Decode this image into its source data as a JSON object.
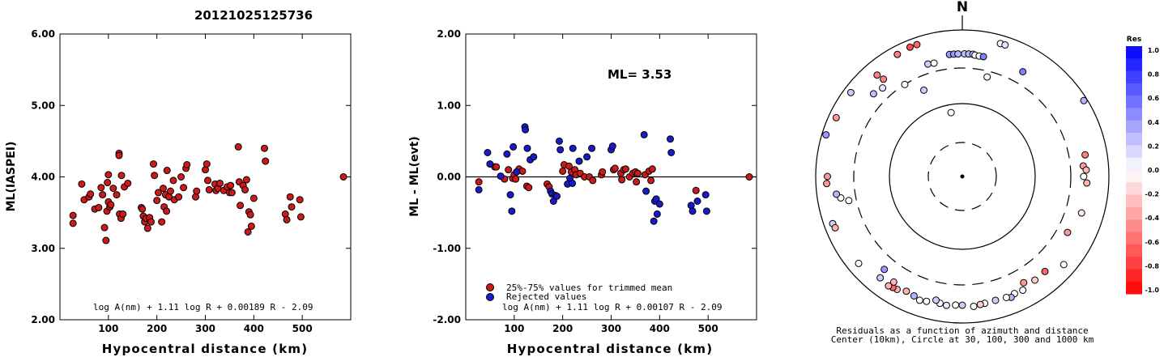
{
  "title": "20121025125736",
  "chart_data": [
    {
      "type": "scatter",
      "xlabel": "Hypocentral distance (km)",
      "ylabel": "ML(IASPEI)",
      "xlim": [
        0,
        600
      ],
      "ylim": [
        2.0,
        6.0
      ],
      "xticks": [
        "100",
        "200",
        "300",
        "400",
        "500"
      ],
      "yticks": [
        "2.00",
        "3.00",
        "4.00",
        "5.00",
        "6.00"
      ],
      "formula": "log A(nm) + 1.11 log R + 0.00189 R - 2.09",
      "series": [
        {
          "color": "#cc1a1a",
          "points": [
            [
              27,
              3.46
            ],
            [
              27,
              3.35
            ],
            [
              45,
              3.9
            ],
            [
              50,
              3.68
            ],
            [
              60,
              3.72
            ],
            [
              63,
              3.76
            ],
            [
              72,
              3.55
            ],
            [
              80,
              3.57
            ],
            [
              85,
              3.85
            ],
            [
              88,
              3.75
            ],
            [
              92,
              3.29
            ],
            [
              95,
              3.11
            ],
            [
              97,
              3.52
            ],
            [
              98,
              3.92
            ],
            [
              100,
              4.03
            ],
            [
              100,
              3.65
            ],
            [
              103,
              3.58
            ],
            [
              105,
              3.61
            ],
            [
              110,
              3.84
            ],
            [
              117,
              3.75
            ],
            [
              122,
              4.33
            ],
            [
              122,
              4.3
            ],
            [
              123,
              3.48
            ],
            [
              126,
              3.42
            ],
            [
              127,
              4.02
            ],
            [
              130,
              3.48
            ],
            [
              133,
              3.86
            ],
            [
              140,
              3.91
            ],
            [
              168,
              3.57
            ],
            [
              170,
              3.55
            ],
            [
              172,
              3.45
            ],
            [
              175,
              3.37
            ],
            [
              178,
              3.42
            ],
            [
              181,
              3.28
            ],
            [
              185,
              3.43
            ],
            [
              188,
              3.37
            ],
            [
              193,
              4.18
            ],
            [
              195,
              4.02
            ],
            [
              200,
              3.67
            ],
            [
              203,
              3.78
            ],
            [
              210,
              3.37
            ],
            [
              213,
              3.84
            ],
            [
              215,
              3.58
            ],
            [
              218,
              3.75
            ],
            [
              220,
              3.52
            ],
            [
              221,
              4.09
            ],
            [
              225,
              3.72
            ],
            [
              228,
              3.8
            ],
            [
              234,
              3.95
            ],
            [
              236,
              3.68
            ],
            [
              245,
              3.72
            ],
            [
              250,
              4.0
            ],
            [
              255,
              3.85
            ],
            [
              260,
              4.12
            ],
            [
              262,
              4.17
            ],
            [
              280,
              3.72
            ],
            [
              282,
              3.8
            ],
            [
              300,
              4.1
            ],
            [
              303,
              4.18
            ],
            [
              305,
              3.95
            ],
            [
              308,
              3.82
            ],
            [
              320,
              3.9
            ],
            [
              322,
              3.81
            ],
            [
              326,
              3.84
            ],
            [
              330,
              3.91
            ],
            [
              338,
              3.81
            ],
            [
              345,
              3.86
            ],
            [
              350,
              3.78
            ],
            [
              352,
              3.88
            ],
            [
              355,
              3.78
            ],
            [
              368,
              4.42
            ],
            [
              370,
              3.93
            ],
            [
              372,
              3.6
            ],
            [
              378,
              3.88
            ],
            [
              382,
              3.82
            ],
            [
              385,
              3.96
            ],
            [
              388,
              3.23
            ],
            [
              390,
              3.51
            ],
            [
              393,
              3.47
            ],
            [
              395,
              3.31
            ],
            [
              400,
              3.7
            ],
            [
              422,
              4.4
            ],
            [
              424,
              4.22
            ],
            [
              465,
              3.48
            ],
            [
              468,
              3.4
            ],
            [
              475,
              3.72
            ],
            [
              478,
              3.58
            ],
            [
              495,
              3.68
            ],
            [
              497,
              3.44
            ],
            [
              585,
              4.0
            ]
          ]
        }
      ]
    },
    {
      "type": "scatter",
      "xlabel": "Hypocentral distance (km)",
      "ylabel": "ML - ML(evt)",
      "xlim": [
        0,
        600
      ],
      "ylim": [
        -2.0,
        2.0
      ],
      "xticks": [
        "100",
        "200",
        "300",
        "400",
        "500"
      ],
      "yticks": [
        "-2.00",
        "-1.00",
        "0.00",
        "1.00",
        "2.00"
      ],
      "reference_line": 0.0,
      "annotation": "ML= 3.53",
      "formula": "log A(nm) + 1.11 log R + 0.00107 R - 2.09",
      "series": [
        {
          "name": "25%-75% values for trimmed mean",
          "color": "#cc1a1a",
          "points": [
            [
              27,
              -0.07
            ],
            [
              60,
              0.14
            ],
            [
              63,
              0.14
            ],
            [
              80,
              -0.03
            ],
            [
              88,
              0.1
            ],
            [
              97,
              -0.02
            ],
            [
              100,
              0.03
            ],
            [
              103,
              -0.03
            ],
            [
              110,
              0.11
            ],
            [
              117,
              0.08
            ],
            [
              126,
              -0.13
            ],
            [
              130,
              -0.15
            ],
            [
              168,
              -0.1
            ],
            [
              172,
              -0.14
            ],
            [
              200,
              0.08
            ],
            [
              203,
              0.17
            ],
            [
              213,
              0.15
            ],
            [
              218,
              0.07
            ],
            [
              225,
              0.1
            ],
            [
              228,
              0.03
            ],
            [
              236,
              0.05
            ],
            [
              245,
              0.0
            ],
            [
              255,
              0.0
            ],
            [
              262,
              -0.05
            ],
            [
              280,
              0.03
            ],
            [
              282,
              0.07
            ],
            [
              305,
              0.1
            ],
            [
              308,
              0.12
            ],
            [
              320,
              0.05
            ],
            [
              322,
              -0.04
            ],
            [
              326,
              0.1
            ],
            [
              330,
              0.11
            ],
            [
              338,
              0.0
            ],
            [
              345,
              0.05
            ],
            [
              350,
              0.07
            ],
            [
              352,
              -0.07
            ],
            [
              355,
              0.05
            ],
            [
              370,
              0.03
            ],
            [
              378,
              0.08
            ],
            [
              382,
              -0.05
            ],
            [
              385,
              0.11
            ],
            [
              475,
              -0.19
            ],
            [
              585,
              0.0
            ]
          ]
        },
        {
          "name": "Rejected values",
          "color": "#1a1acc",
          "points": [
            [
              27,
              -0.18
            ],
            [
              45,
              0.34
            ],
            [
              50,
              0.18
            ],
            [
              72,
              0.01
            ],
            [
              85,
              0.32
            ],
            [
              92,
              -0.25
            ],
            [
              95,
              -0.48
            ],
            [
              98,
              0.42
            ],
            [
              105,
              0.07
            ],
            [
              122,
              0.7
            ],
            [
              123,
              0.66
            ],
            [
              127,
              0.4
            ],
            [
              133,
              0.24
            ],
            [
              140,
              0.28
            ],
            [
              175,
              -0.2
            ],
            [
              178,
              -0.24
            ],
            [
              181,
              -0.34
            ],
            [
              185,
              -0.26
            ],
            [
              188,
              -0.27
            ],
            [
              193,
              0.5
            ],
            [
              195,
              0.38
            ],
            [
              210,
              -0.1
            ],
            [
              215,
              -0.02
            ],
            [
              220,
              -0.09
            ],
            [
              221,
              0.4
            ],
            [
              234,
              0.22
            ],
            [
              250,
              0.28
            ],
            [
              260,
              0.4
            ],
            [
              300,
              0.38
            ],
            [
              303,
              0.43
            ],
            [
              368,
              0.59
            ],
            [
              372,
              -0.2
            ],
            [
              388,
              -0.62
            ],
            [
              390,
              -0.34
            ],
            [
              393,
              -0.31
            ],
            [
              395,
              -0.52
            ],
            [
              400,
              -0.38
            ],
            [
              422,
              0.53
            ],
            [
              424,
              0.34
            ],
            [
              465,
              -0.4
            ],
            [
              468,
              -0.48
            ],
            [
              478,
              -0.34
            ],
            [
              495,
              -0.25
            ],
            [
              497,
              -0.48
            ]
          ]
        }
      ]
    },
    {
      "type": "scatter",
      "title": "N",
      "caption_line1": "Residuals as a function of azimuth and distance",
      "caption_line2": "Center (10km), Circle at 30, 100, 300 and 1000 km",
      "colorbar_title": "Res",
      "colorbar_ticks": [
        "1.0",
        "0.8",
        "0.6",
        "0.4",
        "0.2",
        "0.0",
        "-0.2",
        "-0.4",
        "-0.6",
        "-0.8",
        "-1.0"
      ],
      "points_az_dist_res": [
        [
          -6,
          470,
          0.4
        ],
        [
          -4,
          470,
          0.4
        ],
        [
          -2,
          470,
          0.3
        ],
        [
          1,
          470,
          0.25
        ],
        [
          3,
          470,
          0.3
        ],
        [
          5,
          470,
          0.25
        ],
        [
          6,
          460,
          0.0
        ],
        [
          8,
          455,
          0.0
        ],
        [
          10,
          455,
          0.5
        ],
        [
          -47,
          450,
          0.25
        ],
        [
          -32,
          300,
          0.0
        ],
        [
          -24,
          195,
          0.2
        ],
        [
          -10,
          78,
          0.0
        ],
        [
          16,
          770,
          0.0
        ],
        [
          18,
          770,
          0.1
        ],
        [
          14,
          250,
          0.0
        ],
        [
          30,
          445,
          0.5
        ],
        [
          58,
          900,
          0.3
        ],
        [
          80,
          500,
          -0.5
        ],
        [
          85,
          450,
          -0.4
        ],
        [
          87,
          490,
          -0.3
        ],
        [
          90,
          450,
          0.0
        ],
        [
          93,
          500,
          -0.3
        ],
        [
          107,
          500,
          -0.1
        ],
        [
          118,
          420,
          -0.4
        ],
        [
          131,
          680,
          0.0
        ],
        [
          139,
          520,
          -0.6
        ],
        [
          145,
          530,
          -0.2
        ],
        [
          150,
          470,
          -0.4
        ],
        [
          152,
          570,
          0.0
        ],
        [
          156,
          560,
          0.0
        ],
        [
          158,
          600,
          0.3
        ],
        [
          160,
          570,
          0.0
        ],
        [
          165,
          560,
          0.2
        ],
        [
          170,
          570,
          0.0
        ],
        [
          172,
          580,
          -0.2
        ],
        [
          175,
          600,
          0.0
        ],
        [
          180,
          570,
          0.2
        ],
        [
          183,
          570,
          0.0
        ],
        [
          187,
          590,
          0.1
        ],
        [
          190,
          570,
          0.0
        ],
        [
          192,
          530,
          0.2
        ],
        [
          196,
          590,
          0.0
        ],
        [
          199,
          610,
          0.0
        ],
        [
          202,
          570,
          0.3
        ],
        [
          206,
          550,
          -0.3
        ],
        [
          210,
          600,
          -0.3
        ],
        [
          212,
          610,
          -0.6
        ],
        [
          214,
          630,
          -0.3
        ],
        [
          219,
          600,
          0.2
        ],
        [
          213,
          520,
          -0.3
        ],
        [
          220,
          450,
          0.4
        ],
        [
          230,
          700,
          0.0
        ],
        [
          250,
          760,
          0.2
        ],
        [
          248,
          740,
          -0.3
        ],
        [
          258,
          380,
          0.0
        ],
        [
          260,
          480,
          0.0
        ],
        [
          262,
          540,
          0.3
        ],
        [
          267,
          710,
          -0.4
        ],
        [
          270,
          690,
          -0.4
        ],
        [
          287,
          880,
          0.4
        ],
        [
          295,
          790,
          -0.4
        ],
        [
          307,
          800,
          0.2
        ],
        [
          320,
          640,
          -0.5
        ],
        [
          332,
          770,
          -0.5
        ],
        [
          338,
          800,
          -0.7
        ],
        [
          341,
          800,
          -0.6
        ],
        [
          343,
          400,
          0.2
        ],
        [
          346,
          390,
          0.0
        ],
        [
          321,
          510,
          -0.5
        ],
        [
          318,
          420,
          0.1
        ]
      ]
    }
  ]
}
